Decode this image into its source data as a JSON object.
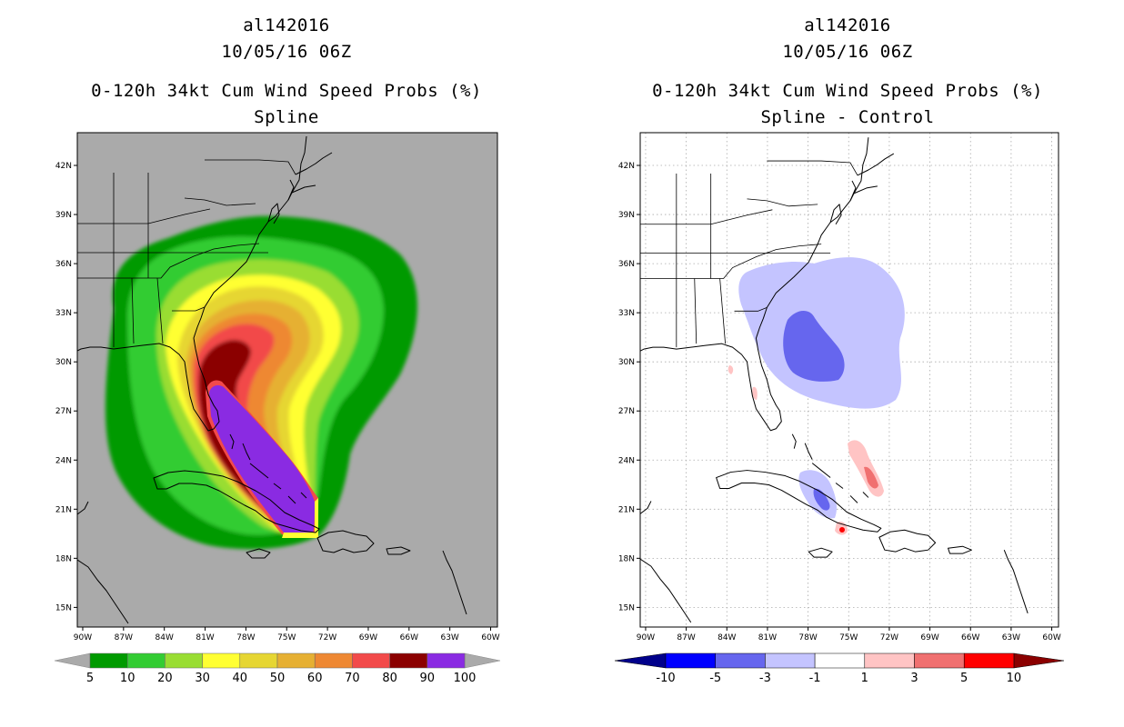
{
  "left": {
    "storm_id": "al142016",
    "datetime": "10/05/16 06Z",
    "product": "0-120h 34kt Cum Wind Speed Probs (%)",
    "method": "Spline",
    "colorbar": {
      "labels": [
        "5",
        "10",
        "20",
        "30",
        "40",
        "50",
        "60",
        "70",
        "80",
        "90",
        "100"
      ],
      "colors": [
        "#009a00",
        "#33cc33",
        "#99dd33",
        "#ffff33",
        "#e6d633",
        "#e6b033",
        "#ee8833",
        "#f24a4a",
        "#8b0000",
        "#8a2be2"
      ]
    }
  },
  "right": {
    "storm_id": "al142016",
    "datetime": "10/05/16 06Z",
    "product": "0-120h 34kt Cum Wind Speed Probs (%)",
    "method": "Spline - Control",
    "colorbar": {
      "labels": [
        "-10",
        "-5",
        "-3",
        "-1",
        "1",
        "3",
        "5",
        "10"
      ],
      "colors": [
        "#0000ff",
        "#6666ee",
        "#c4c4ff",
        "#ffffff",
        "#ffc4c4",
        "#f07070",
        "#ff0000"
      ],
      "left_arrow": "#00008b",
      "right_arrow": "#8b0000"
    }
  },
  "axes": {
    "lat_labels": [
      "42N",
      "39N",
      "36N",
      "33N",
      "30N",
      "27N",
      "24N",
      "21N",
      "18N",
      "15N"
    ],
    "lon_labels": [
      "90W",
      "87W",
      "84W",
      "81W",
      "78W",
      "75W",
      "72W",
      "69W",
      "66W",
      "63W",
      "60W"
    ],
    "lat_values": [
      42,
      39,
      36,
      33,
      30,
      27,
      24,
      21,
      18,
      15
    ],
    "lon_values": [
      -90,
      -87,
      -84,
      -81,
      -78,
      -75,
      -72,
      -69,
      -66,
      -63,
      -60
    ],
    "lat_range": [
      13.8,
      44
    ],
    "lon_range": [
      -90.4,
      -59.5
    ]
  },
  "colors": {
    "land_background_left": "#aaaaaa",
    "background_right": "#ffffff"
  }
}
